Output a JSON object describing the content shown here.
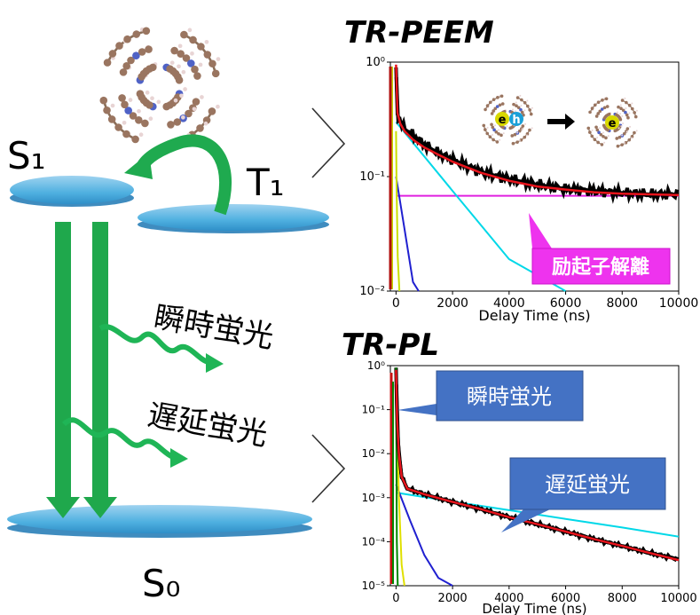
{
  "diagram": {
    "states": {
      "s1": "S₁",
      "t1": "T₁",
      "s0": "S₀"
    },
    "emissions": {
      "prompt": "瞬時蛍光",
      "delayed": "遅延蛍光"
    }
  },
  "peem": {
    "title": "TR-PEEM",
    "callout": "励起子解離",
    "molecule_labels": {
      "electron": "e",
      "hole": "h"
    },
    "colors": {
      "data": "#000000",
      "fit": "#e8141c",
      "const": "#e020e0",
      "comp1": "#00d8e8",
      "comp2": "#2020d0",
      "comp3": "#c8e000",
      "callout_bg": "#ee33ee"
    }
  },
  "pl": {
    "title": "TR-PL",
    "callout_prompt": "瞬時蛍光",
    "callout_delayed": "遅延蛍光",
    "colors": {
      "data": "#000000",
      "fit": "#e8141c",
      "comp1": "#00d8e8",
      "comp2": "#2020d0",
      "comp3": "#e0e000",
      "comp4": "#008800",
      "callout_bg": "#4472c4"
    }
  },
  "chart_data": [
    {
      "type": "line",
      "title": "TR-PEEM",
      "xlabel": "Delay Time (ns)",
      "ylabel": "",
      "yscale": "log",
      "xlim": [
        -200,
        10000
      ],
      "ylim": [
        0.01,
        1
      ],
      "x_ticks": [
        "0",
        "2000",
        "4000",
        "6000",
        "8000",
        "10000"
      ],
      "y_ticks": [
        "10⁰",
        "10⁻¹",
        "10⁻²"
      ],
      "series": [
        {
          "x": [
            0,
            50,
            150,
            300,
            600,
            1000,
            1500,
            2000,
            3000,
            4000,
            5000,
            6000,
            7000,
            8000,
            9000,
            10000
          ],
          "values": [
            0.9,
            0.35,
            0.3,
            0.26,
            0.23,
            0.19,
            0.16,
            0.14,
            0.11,
            0.095,
            0.085,
            0.078,
            0.075,
            0.072,
            0.07,
            0.07
          ]
        },
        {
          "x": [
            0,
            50,
            150,
            300,
            600,
            1000,
            1500,
            2000,
            3000,
            4000,
            5000,
            6000,
            7000,
            8000,
            9000,
            10000
          ],
          "values": [
            0.95,
            0.36,
            0.29,
            0.25,
            0.21,
            0.18,
            0.155,
            0.135,
            0.108,
            0.092,
            0.082,
            0.077,
            0.073,
            0.071,
            0.07,
            0.069
          ]
        },
        {
          "x": [
            0,
            10000
          ],
          "values": [
            0.068,
            0.068
          ]
        },
        {
          "x": [
            0,
            2000,
            4000,
            6000
          ],
          "values": [
            0.3,
            0.075,
            0.019,
            0.0048
          ]
        },
        {
          "x": [
            0,
            300,
            600,
            800
          ],
          "values": [
            0.1,
            0.035,
            0.012,
            0.006
          ]
        },
        {
          "x": [
            0,
            20,
            60,
            120
          ],
          "values": [
            0.25,
            0.08,
            0.02,
            0.004
          ]
        }
      ]
    },
    {
      "type": "line",
      "title": "TR-PL",
      "xlabel": "Delay Time (ns)",
      "ylabel": "",
      "yscale": "log",
      "xlim": [
        -200,
        10000
      ],
      "ylim": [
        1e-05,
        1
      ],
      "x_ticks": [
        "0",
        "2000",
        "4000",
        "6000",
        "8000",
        "10000"
      ],
      "y_ticks": [
        "10⁰",
        "10⁻¹",
        "10⁻²",
        "10⁻³",
        "10⁻⁴",
        "10⁻⁵"
      ],
      "series": [
        {
          "x": [
            0,
            40,
            100,
            200,
            400,
            1000,
            2000,
            3000,
            4000,
            5000,
            6000,
            7000,
            8000,
            9000,
            10000
          ],
          "values": [
            0.9,
            0.05,
            0.01,
            0.003,
            0.0016,
            0.0012,
            0.0008,
            0.00055,
            0.00036,
            0.00025,
            0.00017,
            0.000115,
            8e-05,
            5.5e-05,
            4e-05
          ]
        },
        {
          "x": [
            0,
            40,
            100,
            200,
            400,
            1000,
            2000,
            3000,
            4000,
            5000,
            6000,
            7000,
            8000,
            9000,
            10000
          ],
          "values": [
            0.8,
            0.06,
            0.01,
            0.003,
            0.0016,
            0.0012,
            0.0008,
            0.00055,
            0.00036,
            0.00025,
            0.00017,
            0.000115,
            8e-05,
            5.5e-05,
            3.8e-05
          ]
        },
        {
          "x": [
            0,
            2000,
            4000,
            6000,
            8000,
            10000
          ],
          "values": [
            0.0013,
            0.00082,
            0.00052,
            0.00033,
            0.00021,
            0.00013
          ]
        },
        {
          "x": [
            0,
            500,
            1000,
            1500,
            2000
          ],
          "values": [
            0.002,
            0.0003,
            5e-05,
            1.5e-05,
            1e-05
          ]
        },
        {
          "x": [
            0,
            100,
            200,
            300
          ],
          "values": [
            0.6,
            0.001,
            3e-05,
            1e-05
          ]
        },
        {
          "x": [
            0,
            30,
            60
          ],
          "values": [
            0.9,
            0.0001,
            1e-05
          ]
        }
      ]
    }
  ]
}
